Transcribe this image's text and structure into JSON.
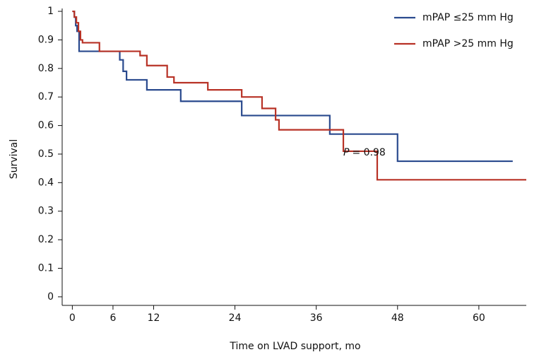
{
  "chart_data": {
    "type": "line",
    "step": "post",
    "xlabel": "Time on LVAD support, mo",
    "ylabel": "Survival",
    "xlim": [
      -1.5,
      67
    ],
    "ylim": [
      -0.03,
      1.01
    ],
    "xticks": [
      0,
      6,
      12,
      24,
      36,
      48,
      60
    ],
    "yticks": [
      0,
      0.1,
      0.2,
      0.3,
      0.4,
      0.5,
      0.6,
      0.7,
      0.8,
      0.9,
      1
    ],
    "legend": "upper right",
    "annotation": {
      "variable": "P",
      "text": "= 0.98",
      "x": 40,
      "y": 0.505
    },
    "series": [
      {
        "name": "mPAP ≤25 mm Hg",
        "color": "#2a4a8e",
        "x": [
          0,
          0.3,
          0.5,
          0.7,
          1,
          7,
          7.5,
          8,
          11,
          16,
          25,
          38,
          48,
          65
        ],
        "values": [
          1,
          0.98,
          0.95,
          0.93,
          0.86,
          0.83,
          0.79,
          0.76,
          0.725,
          0.685,
          0.635,
          0.57,
          0.475,
          0.475
        ]
      },
      {
        "name": "mPAP >25 mm Hg",
        "color": "#b83226",
        "x": [
          0,
          0.3,
          0.6,
          0.9,
          1.2,
          1.5,
          4,
          10,
          11,
          14,
          15,
          20,
          25,
          28,
          30,
          30.5,
          40,
          45,
          67
        ],
        "values": [
          1,
          0.98,
          0.96,
          0.93,
          0.9,
          0.89,
          0.86,
          0.845,
          0.81,
          0.77,
          0.75,
          0.725,
          0.7,
          0.66,
          0.62,
          0.585,
          0.51,
          0.41,
          0.41
        ]
      }
    ]
  }
}
